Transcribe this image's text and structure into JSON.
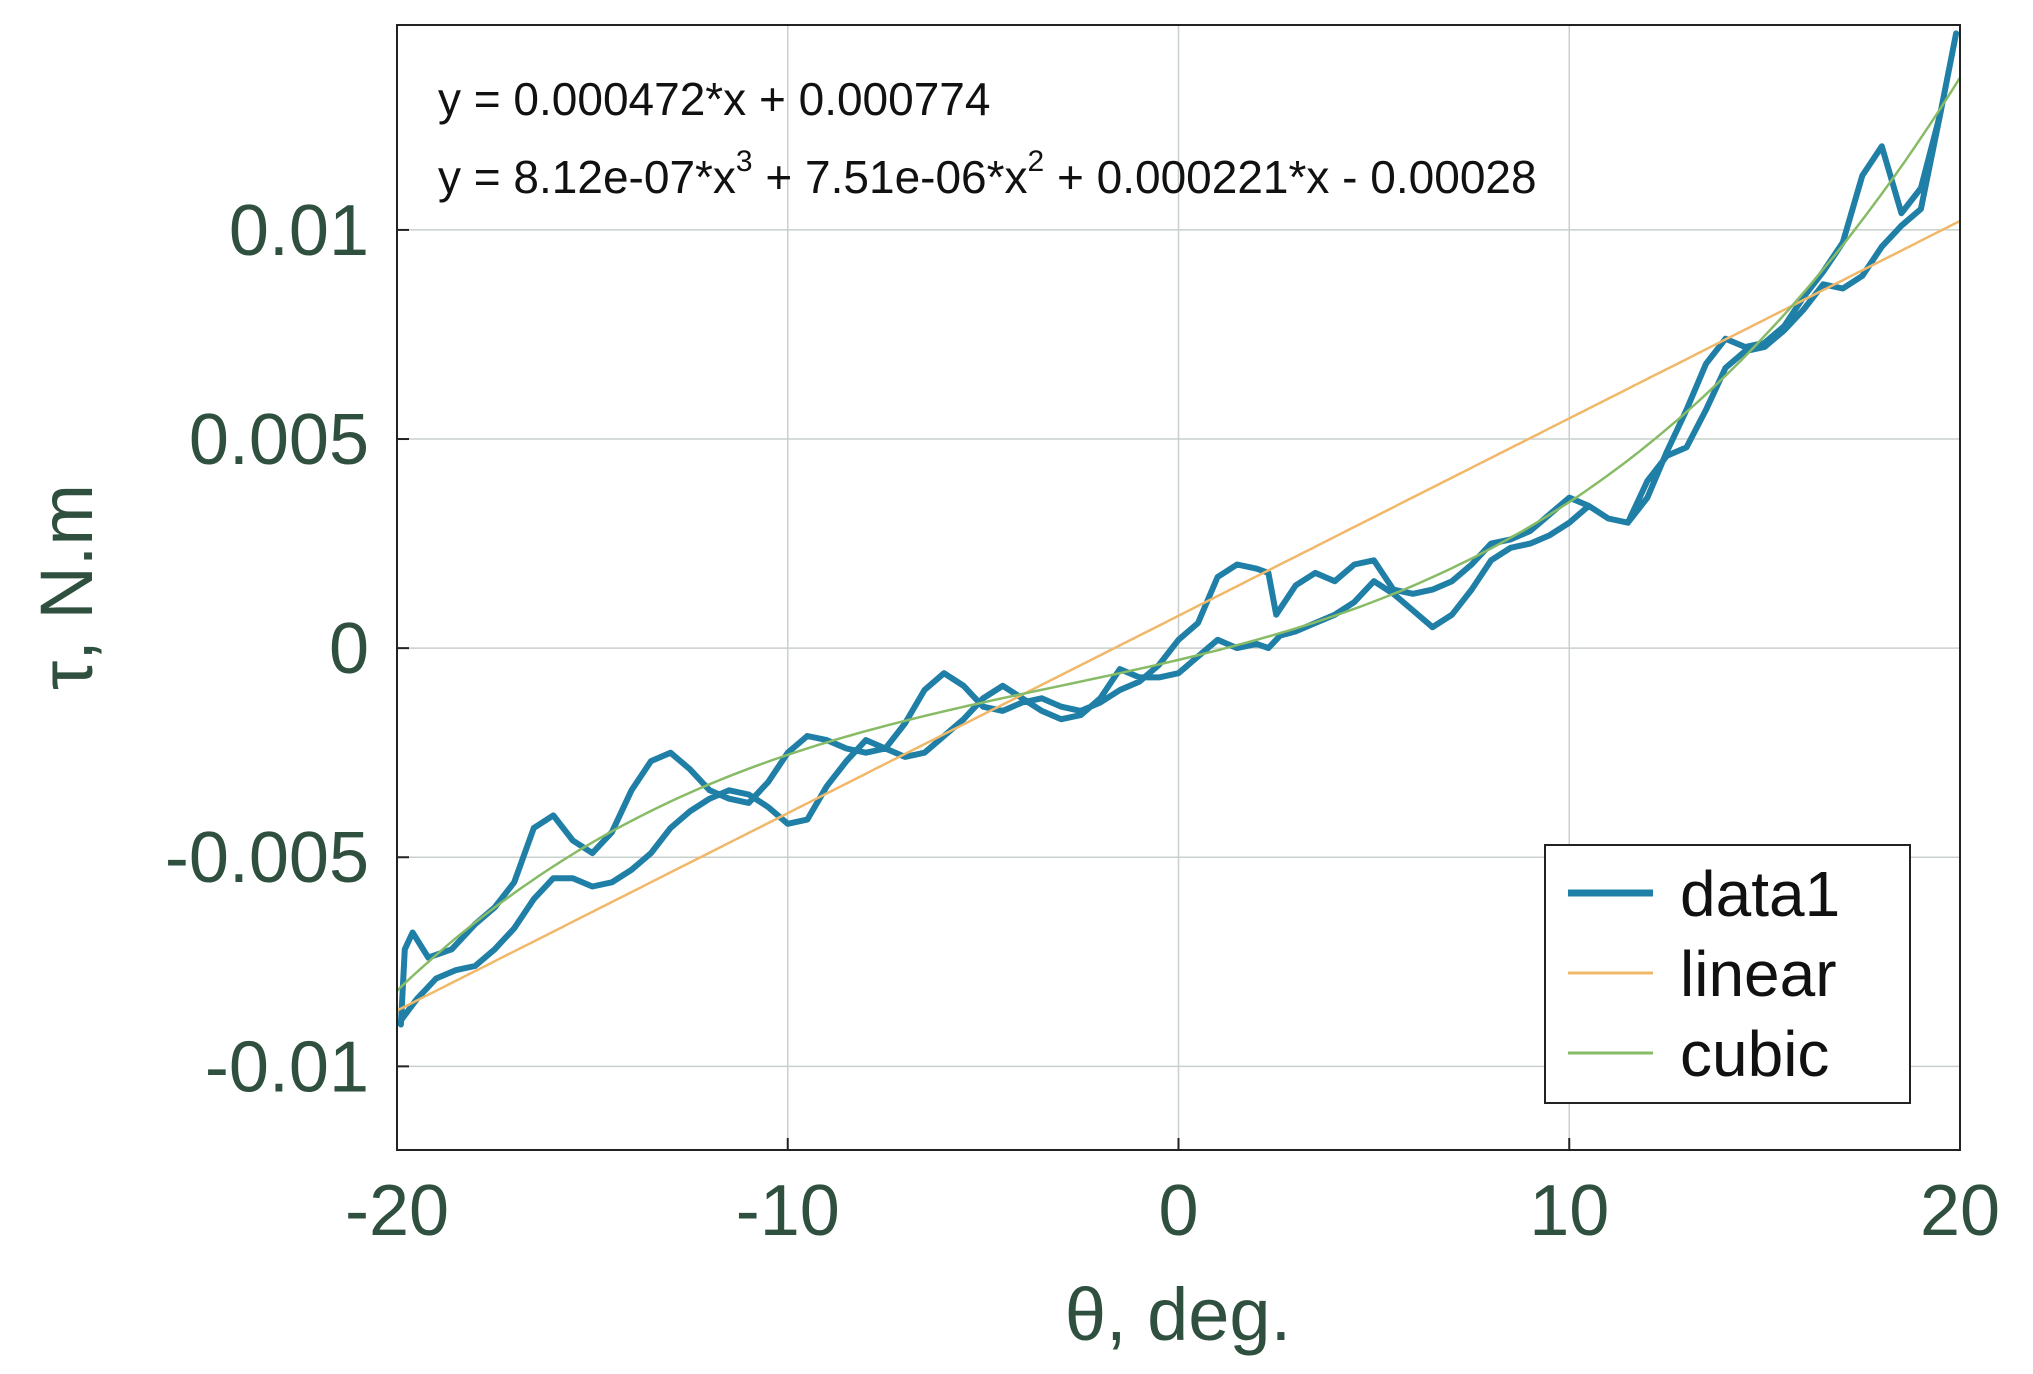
{
  "chart_data": {
    "type": "line",
    "xlabel": "θ, deg.",
    "ylabel": "τ, N.m",
    "xlim": [
      -20,
      20
    ],
    "ylim": [
      -0.012,
      0.0149
    ],
    "xticks": [
      "-20",
      "-10",
      "0",
      "10",
      "20"
    ],
    "yticks": [
      "-0.01",
      "-0.005",
      "0",
      "0.005",
      "0.01"
    ],
    "grid": true,
    "legend_position": "bottom-right",
    "annotations": {
      "linear_eq": "y = 0.000472*x + 0.000774",
      "cubic_eq_parts": [
        "y = 8.12e-07*x",
        "3",
        " + 7.51e-06*x",
        "2",
        " + 0.000221*x - 0.00028"
      ]
    },
    "series": [
      {
        "name": "data1",
        "color": "#1f7fa6",
        "kind": "data",
        "x": [
          -19.9,
          -19.8,
          -19.6,
          -19.2,
          -18.6,
          -18.0,
          -17.5,
          -17.0,
          -16.5,
          -16.0,
          -15.5,
          -15.0,
          -14.5,
          -14.0,
          -13.5,
          -13.0,
          -12.5,
          -12.0,
          -11.5,
          -11.0,
          -10.5,
          -10.0,
          -9.5,
          -9.0,
          -8.5,
          -8.0,
          -7.5,
          -7.0,
          -6.5,
          -6.0,
          -5.5,
          -5.0,
          -4.5,
          -4.0,
          -3.5,
          -3.0,
          -2.5,
          -2.0,
          -1.5,
          -1.0,
          -0.5,
          0.0,
          0.5,
          1.0,
          1.5,
          2.0,
          2.3,
          2.5,
          3.0,
          3.5,
          4.0,
          4.5,
          5.0,
          5.5,
          6.0,
          6.5,
          7.0,
          7.5,
          8.0,
          8.5,
          9.0,
          9.5,
          10.0,
          10.5,
          11.0,
          11.5,
          12.0,
          12.5,
          13.0,
          13.5,
          14.0,
          14.5,
          15.0,
          15.5,
          16.0,
          16.5,
          17.0,
          17.5,
          18.0,
          18.5,
          19.0,
          19.5,
          19.9,
          19.5,
          19.0,
          18.5,
          18.0,
          17.5,
          17.0,
          16.5,
          16.0,
          15.5,
          15.0,
          14.5,
          14.0,
          13.5,
          13.0,
          12.5,
          12.0,
          11.5,
          11.0,
          10.5,
          10.0,
          9.5,
          9.0,
          8.5,
          8.0,
          7.5,
          7.0,
          6.5,
          6.0,
          5.5,
          5.0,
          4.5,
          4.0,
          3.5,
          3.0,
          2.6,
          2.3,
          2.0,
          1.5,
          1.0,
          0.5,
          0.0,
          -0.5,
          -1.0,
          -1.5,
          -2.0,
          -2.5,
          -3.0,
          -3.5,
          -4.0,
          -4.5,
          -5.0,
          -5.5,
          -6.0,
          -6.5,
          -7.0,
          -7.5,
          -8.0,
          -8.5,
          -9.0,
          -9.5,
          -10.0,
          -10.5,
          -11.0,
          -11.5,
          -12.0,
          -12.5,
          -13.0,
          -13.5,
          -14.0,
          -14.5,
          -15.0,
          -15.5,
          -16.0,
          -16.5,
          -17.0,
          -17.5,
          -18.0,
          -18.5,
          -19.0,
          -19.5,
          -19.9
        ],
        "y": [
          -0.009,
          -0.0072,
          -0.0068,
          -0.0074,
          -0.0072,
          -0.0066,
          -0.0062,
          -0.0056,
          -0.0043,
          -0.004,
          -0.0046,
          -0.0049,
          -0.0044,
          -0.0034,
          -0.0027,
          -0.0025,
          -0.0029,
          -0.0034,
          -0.0036,
          -0.0037,
          -0.0032,
          -0.0025,
          -0.0021,
          -0.0022,
          -0.0024,
          -0.0025,
          -0.0024,
          -0.0018,
          -0.001,
          -0.0006,
          -0.0009,
          -0.0014,
          -0.0015,
          -0.0013,
          -0.0012,
          -0.0014,
          -0.0015,
          -0.0013,
          -0.001,
          -0.0008,
          -0.0004,
          0.0002,
          0.0006,
          0.0017,
          0.002,
          0.0019,
          0.0018,
          0.0008,
          0.0015,
          0.0018,
          0.0016,
          0.002,
          0.0021,
          0.0014,
          0.0013,
          0.0014,
          0.0016,
          0.002,
          0.0025,
          0.0026,
          0.0028,
          0.0032,
          0.0036,
          0.0034,
          0.0031,
          0.003,
          0.0036,
          0.0047,
          0.0057,
          0.0068,
          0.0074,
          0.0072,
          0.0073,
          0.0077,
          0.0084,
          0.009,
          0.0097,
          0.0113,
          0.012,
          0.0104,
          0.011,
          0.0128,
          0.0147,
          0.0128,
          0.0105,
          0.0101,
          0.0096,
          0.0089,
          0.0086,
          0.0087,
          0.0081,
          0.0076,
          0.0072,
          0.0071,
          0.0067,
          0.0057,
          0.0048,
          0.0046,
          0.004,
          0.003,
          0.0031,
          0.0034,
          0.003,
          0.0027,
          0.0025,
          0.0024,
          0.0021,
          0.0014,
          0.0008,
          0.0005,
          0.0009,
          0.0013,
          0.0016,
          0.0011,
          0.0008,
          0.0006,
          0.0004,
          0.0003,
          0.0,
          0.0001,
          0.0,
          0.0002,
          -0.0002,
          -0.0006,
          -0.0007,
          -0.0007,
          -0.0005,
          -0.0012,
          -0.0016,
          -0.0017,
          -0.0015,
          -0.0012,
          -0.0009,
          -0.0012,
          -0.0017,
          -0.0021,
          -0.0025,
          -0.0026,
          -0.0024,
          -0.0022,
          -0.0027,
          -0.0033,
          -0.0041,
          -0.0042,
          -0.0038,
          -0.0035,
          -0.0034,
          -0.0036,
          -0.0039,
          -0.0043,
          -0.0049,
          -0.0053,
          -0.0056,
          -0.0057,
          -0.0055,
          -0.0055,
          -0.006,
          -0.0067,
          -0.0072,
          -0.0076,
          -0.0077,
          -0.0079,
          -0.0084,
          -0.0089
        ]
      },
      {
        "name": "linear",
        "color": "#f0b868",
        "kind": "linear",
        "coeffs": [
          0.000472,
          0.000774
        ]
      },
      {
        "name": "cubic",
        "color": "#88bb66",
        "kind": "cubic",
        "coeffs": [
          8.12e-07,
          7.51e-06,
          0.000221,
          -0.00028
        ]
      }
    ]
  }
}
